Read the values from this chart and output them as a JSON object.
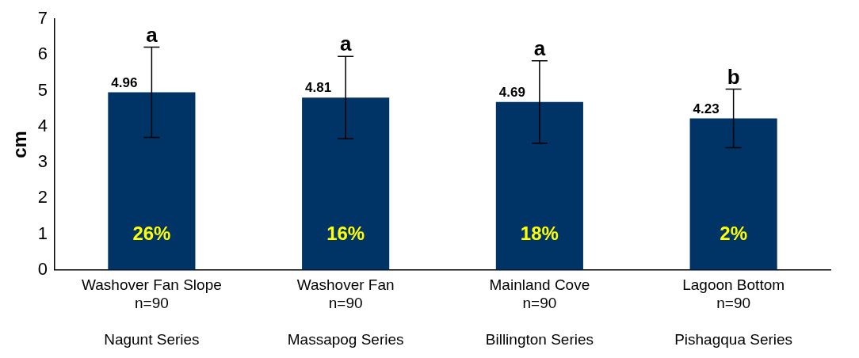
{
  "chart_data": {
    "type": "bar",
    "ylabel": "cm",
    "categories": [
      "Washover Fan Slope\nn=90\n\nNagunt Series",
      "Washover Fan\nn=90\n\nMassapog Series",
      "Mainland Cove\nn=90\n\nBillington Series",
      "Lagoon Bottom\nn=90\n\nPishagqua Series"
    ],
    "values": [
      4.96,
      4.81,
      4.69,
      4.23
    ],
    "errors": [
      1.26,
      1.15,
      1.15,
      0.82
    ],
    "color": "#003366",
    "data_labels": true,
    "ylim": [
      0,
      7
    ],
    "yticks": [
      0,
      1,
      2,
      3,
      4,
      5,
      6,
      7
    ],
    "grid": false,
    "legend": false,
    "annotations": [
      {
        "text": "a",
        "x": "Washover Fan Slope\nn=90\n\nNagunt Series",
        "y": 6.22
      },
      {
        "text": "a",
        "x": "Washover Fan\nn=90\n\nMassapog Series",
        "y": 5.96
      },
      {
        "text": "a",
        "x": "Mainland Cove\nn=90\n\nBillington Series",
        "y": 5.84
      },
      {
        "text": "b",
        "x": "Lagoon Bottom\nn=90\n\nPishagqua Series",
        "y": 5.05
      },
      "26%",
      "16%",
      "18%",
      "2%"
    ]
  }
}
